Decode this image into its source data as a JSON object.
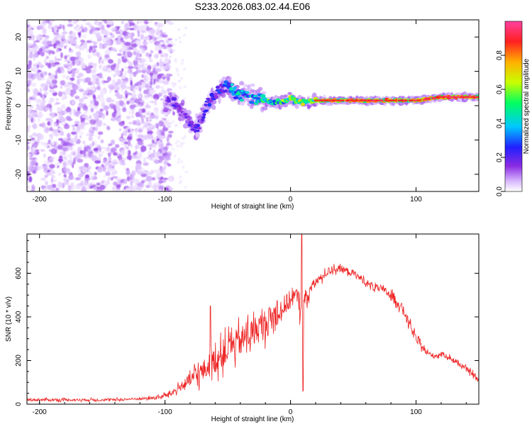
{
  "figure_title": "S233.2026.083.02.44.E06",
  "chart_data": [
    {
      "type": "heatmap",
      "name": "spectrogram",
      "xlabel": "Height of straight line (km)",
      "ylabel": "Frequency (Hz)",
      "xlim": [
        -210,
        150
      ],
      "ylim": [
        -25,
        25
      ],
      "xticks": [
        -200,
        -100,
        0,
        100
      ],
      "yticks": [
        -20,
        -10,
        0,
        10,
        20
      ],
      "x_tick_labels": [
        "-200",
        "-100",
        "0",
        "100"
      ],
      "y_tick_labels": [
        "-20",
        "-10",
        "0",
        "10",
        "20"
      ],
      "colorbar": {
        "label": "Normalized spectral amplitude",
        "range": [
          0,
          1
        ],
        "ticks": [
          0.0,
          0.2,
          0.4,
          0.6,
          0.8
        ],
        "tick_labels": [
          "0.0",
          "0.2",
          "0.4",
          "0.6",
          "0.8"
        ],
        "colors": [
          "#ffffff",
          "#d8b8ff",
          "#8a2be2",
          "#2020ff",
          "#00c8ff",
          "#00ff60",
          "#c8ff00",
          "#ffb000",
          "#ff2020",
          "#ff40a0"
        ]
      },
      "noise_region_x": [
        -210,
        -95
      ],
      "signal_track": {
        "x": [
          -100,
          -95,
          -90,
          -85,
          -80,
          -75,
          -70,
          -65,
          -60,
          -55,
          -50,
          -45,
          -40,
          -35,
          -30,
          -25,
          -20,
          -15,
          -10,
          -5,
          0,
          10,
          20,
          40,
          60,
          80,
          100,
          120,
          140,
          150
        ],
        "freq": [
          0,
          2,
          0,
          -3,
          -5,
          -7,
          -3,
          1,
          3,
          5,
          6,
          4,
          3,
          3.5,
          2,
          2,
          1.5,
          1,
          1,
          1,
          2,
          1,
          1.5,
          1.5,
          1.5,
          1.5,
          1.5,
          2.5,
          2.5,
          2.5
        ],
        "amp": [
          0.2,
          0.3,
          0.25,
          0.25,
          0.3,
          0.3,
          0.3,
          0.35,
          0.35,
          0.4,
          0.45,
          0.5,
          0.5,
          0.45,
          0.5,
          0.55,
          0.6,
          0.6,
          0.65,
          0.65,
          0.7,
          0.7,
          0.75,
          0.85,
          0.85,
          0.85,
          0.85,
          0.9,
          0.95,
          0.95
        ]
      }
    },
    {
      "type": "line",
      "name": "snr",
      "xlabel": "Height of straight line (km)",
      "ylabel": "SNR (10 * v/v)",
      "xlim": [
        -210,
        150
      ],
      "ylim": [
        0,
        780
      ],
      "xticks": [
        -200,
        -100,
        0,
        100
      ],
      "yticks": [
        0,
        200,
        400,
        600
      ],
      "x_tick_labels": [
        "-200",
        "-100",
        "0",
        "100"
      ],
      "y_tick_labels": [
        "0",
        "200",
        "400",
        "600"
      ],
      "series": [
        {
          "name": "SNR",
          "color": "#ee2222",
          "x": [
            -210,
            -200,
            -180,
            -160,
            -140,
            -120,
            -105,
            -100,
            -95,
            -90,
            -85,
            -80,
            -75,
            -70,
            -65,
            -60,
            -55,
            -50,
            -45,
            -40,
            -35,
            -30,
            -25,
            -20,
            -15,
            -10,
            -5,
            0,
            5,
            10,
            15,
            20,
            25,
            30,
            35,
            40,
            45,
            50,
            55,
            60,
            65,
            70,
            75,
            80,
            85,
            90,
            95,
            100,
            105,
            110,
            115,
            120,
            125,
            130,
            135,
            140,
            145,
            150
          ],
          "y": [
            20,
            20,
            20,
            20,
            20,
            25,
            30,
            40,
            50,
            70,
            90,
            110,
            130,
            150,
            175,
            200,
            225,
            250,
            270,
            290,
            310,
            330,
            350,
            370,
            390,
            420,
            450,
            480,
            500,
            420,
            520,
            560,
            580,
            610,
            620,
            620,
            610,
            600,
            580,
            560,
            540,
            530,
            520,
            500,
            470,
            430,
            360,
            300,
            260,
            230,
            220,
            230,
            220,
            200,
            180,
            160,
            140,
            110
          ],
          "noise": [
            10,
            10,
            10,
            10,
            10,
            10,
            15,
            20,
            25,
            30,
            40,
            60,
            80,
            90,
            100,
            110,
            110,
            120,
            120,
            120,
            120,
            120,
            120,
            120,
            110,
            100,
            90,
            80,
            60,
            150,
            50,
            40,
            35,
            30,
            30,
            30,
            30,
            30,
            30,
            30,
            30,
            30,
            30,
            35,
            40,
            40,
            40,
            35,
            25,
            20,
            20,
            20,
            20,
            20,
            20,
            20,
            20,
            20
          ],
          "spikes": [
            {
              "x": -64,
              "y": 450
            },
            {
              "x": -48,
              "y": 330
            },
            {
              "x": 9,
              "y": 780
            },
            {
              "x": 10,
              "y": 60
            }
          ]
        }
      ]
    }
  ]
}
